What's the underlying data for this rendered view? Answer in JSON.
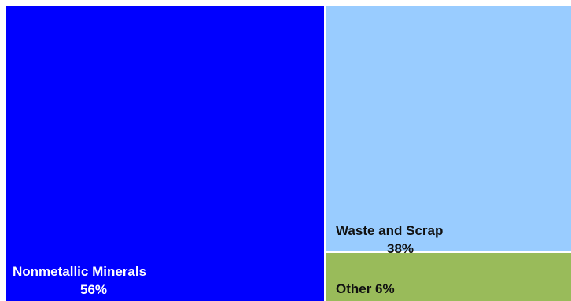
{
  "chart_data": {
    "type": "treemap",
    "title": "",
    "nodes": [
      {
        "name": "Nonmetallic Minerals",
        "percent_label": "56%",
        "value": 56,
        "color": "#0000ff",
        "text_color": "#ffffff"
      },
      {
        "name": "Waste and Scrap",
        "percent_label": "38%",
        "value": 38,
        "color": "#99ccff",
        "text_color": "#111111"
      },
      {
        "name": "Other 6%",
        "percent_label": "",
        "value": 6,
        "color": "#99bb5a",
        "text_color": "#111111"
      }
    ]
  }
}
